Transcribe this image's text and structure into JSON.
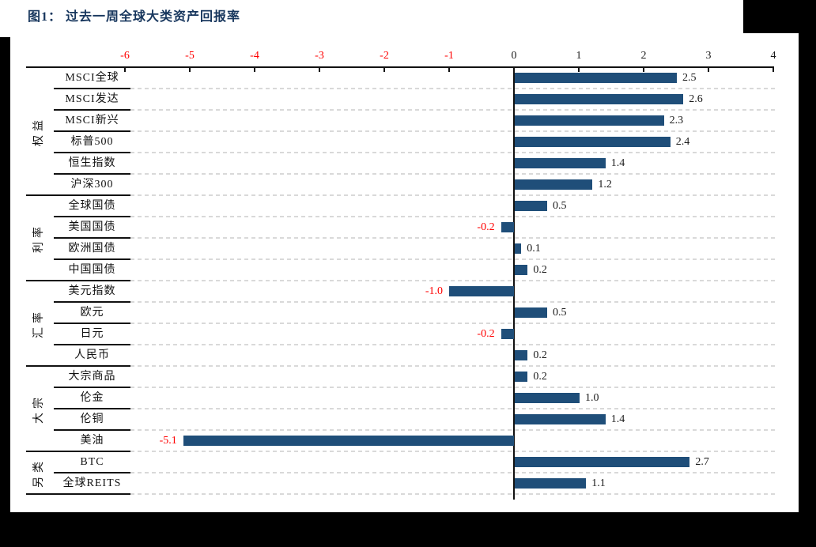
{
  "title": "图1： 过去一周全球大类资产回报率",
  "chart_data": {
    "type": "bar",
    "orientation": "horizontal",
    "figure_label": "图1",
    "title": "过去一周全球大类资产回报率",
    "xlim": [
      -6,
      4
    ],
    "xticks": [
      -6,
      -5,
      -4,
      -3,
      -2,
      -1,
      0,
      1,
      2,
      3,
      4
    ],
    "grid": "dashed-horizontal",
    "legend": "none",
    "groups": [
      {
        "label": "权益",
        "rows": [
          {
            "label": "MSCI全球",
            "value": 2.5
          },
          {
            "label": "MSCI发达",
            "value": 2.6
          },
          {
            "label": "MSCI新兴",
            "value": 2.3
          },
          {
            "label": "标普500",
            "value": 2.4
          },
          {
            "label": "恒生指数",
            "value": 1.4
          },
          {
            "label": "沪深300",
            "value": 1.2
          }
        ]
      },
      {
        "label": "利率",
        "rows": [
          {
            "label": "全球国债",
            "value": 0.5
          },
          {
            "label": "美国国债",
            "value": -0.2
          },
          {
            "label": "欧洲国债",
            "value": 0.1
          },
          {
            "label": "中国国债",
            "value": 0.2
          }
        ]
      },
      {
        "label": "汇率",
        "rows": [
          {
            "label": "美元指数",
            "value": -1.0
          },
          {
            "label": "欧元",
            "value": 0.5
          },
          {
            "label": "日元",
            "value": -0.2
          },
          {
            "label": "人民币",
            "value": 0.2
          }
        ]
      },
      {
        "label": "大宗",
        "rows": [
          {
            "label": "大宗商品",
            "value": 0.2
          },
          {
            "label": "伦金",
            "value": 1.0
          },
          {
            "label": "伦铜",
            "value": 1.4
          },
          {
            "label": "美油",
            "value": -5.1
          }
        ]
      },
      {
        "label": "另类",
        "rows": [
          {
            "label": "BTC",
            "value": 2.7
          },
          {
            "label": "全球REITS",
            "value": 1.1
          }
        ]
      }
    ],
    "colors": {
      "bar": "#1F4E79",
      "title": "#17365D",
      "negative_text": "#FF0000",
      "positive_text": "#1A1A1A",
      "gridline": "#D9D9D9",
      "axis": "#111111"
    }
  }
}
